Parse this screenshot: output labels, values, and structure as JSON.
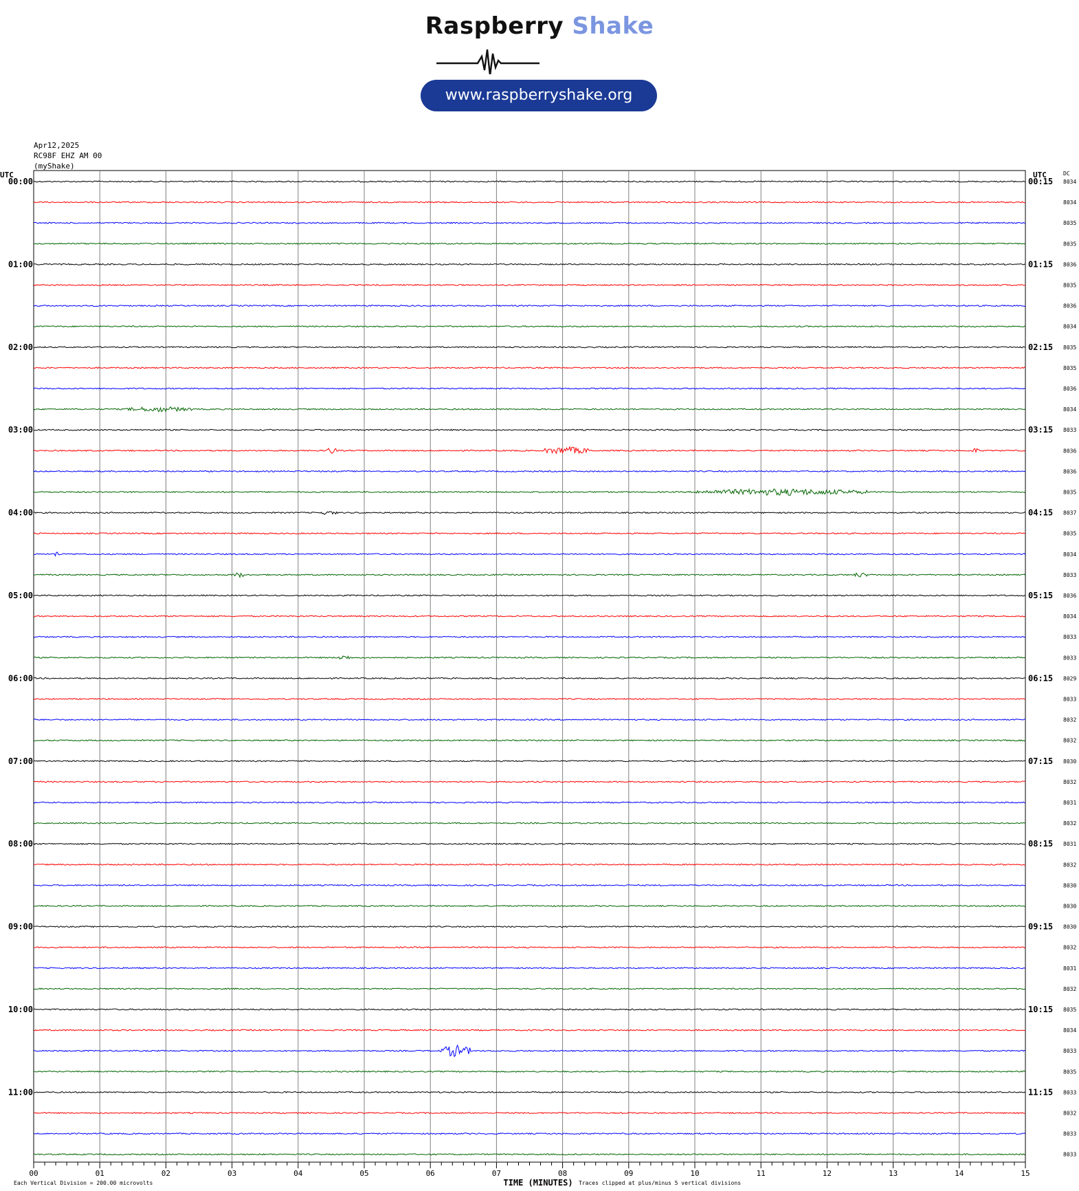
{
  "header": {
    "brand_part1": "Raspberry",
    "brand_part2": "Shake",
    "url": "www.raspberryshake.org",
    "date": "Apr12,2025",
    "station": "RC98F EHZ AM 00",
    "network": "(myShake)"
  },
  "colors": {
    "trace_cycle": [
      "#000000",
      "#ff0000",
      "#0000ff",
      "#006400"
    ],
    "grid": "#808080",
    "brand_accent": "#7b96e0",
    "pill": "#1b3a96"
  },
  "chart_data": {
    "type": "line",
    "title": "",
    "left_axis_label": "UTC",
    "right_axis_label": "UTC",
    "dc_label": "DC",
    "xlabel": "TIME (MINUTES)",
    "xlim": [
      0,
      15
    ],
    "x_ticks": [
      "00",
      "01",
      "02",
      "03",
      "04",
      "05",
      "06",
      "07",
      "08",
      "09",
      "10",
      "11",
      "12",
      "13",
      "14",
      "15"
    ],
    "left_hour_labels": [
      "00:00",
      "01:00",
      "02:00",
      "03:00",
      "04:00",
      "05:00",
      "06:00",
      "07:00",
      "08:00",
      "09:00",
      "10:00",
      "11:00"
    ],
    "right_hour_labels": [
      "00:15",
      "01:15",
      "02:15",
      "03:15",
      "04:15",
      "05:15",
      "06:15",
      "07:15",
      "08:15",
      "09:15",
      "10:15",
      "11:15"
    ],
    "dc_offsets": [
      "8034",
      "8034",
      "8035",
      "8035",
      "8036",
      "8035",
      "8036",
      "8034",
      "8035",
      "8035",
      "8036",
      "8034",
      "8033",
      "8036",
      "8036",
      "8035",
      "8037",
      "8035",
      "8034",
      "8033",
      "8036",
      "8034",
      "8033",
      "8033",
      "8029",
      "8033",
      "8032",
      "8032",
      "8030",
      "8032",
      "8031",
      "8032",
      "8031",
      "8032",
      "8030",
      "8030",
      "8030",
      "8032",
      "8031",
      "8032",
      "8035",
      "8034",
      "8033",
      "8035",
      "8033",
      "8032",
      "8033",
      "8033"
    ],
    "events": [
      {
        "row": 11,
        "start_min": 1.4,
        "end_min": 2.4,
        "amp": 4
      },
      {
        "row": 13,
        "start_min": 4.4,
        "end_min": 4.6,
        "amp": 5
      },
      {
        "row": 13,
        "start_min": 7.7,
        "end_min": 8.4,
        "amp": 6
      },
      {
        "row": 13,
        "start_min": 14.2,
        "end_min": 14.3,
        "amp": 4
      },
      {
        "row": 15,
        "start_min": 10.0,
        "end_min": 12.6,
        "amp": 5
      },
      {
        "row": 16,
        "start_min": 4.3,
        "end_min": 4.6,
        "amp": 3
      },
      {
        "row": 18,
        "start_min": 0.3,
        "end_min": 0.4,
        "amp": 5
      },
      {
        "row": 19,
        "start_min": 3.0,
        "end_min": 3.2,
        "amp": 4
      },
      {
        "row": 19,
        "start_min": 12.4,
        "end_min": 12.6,
        "amp": 4
      },
      {
        "row": 23,
        "start_min": 4.6,
        "end_min": 4.8,
        "amp": 4
      },
      {
        "row": 42,
        "start_min": 6.15,
        "end_min": 6.6,
        "amp": 9
      }
    ],
    "bottom_note_left": "Each Vertical Division =  200.00 microvolts",
    "bottom_note_right": "Traces clipped at plus/minus 5 vertical divisions"
  }
}
